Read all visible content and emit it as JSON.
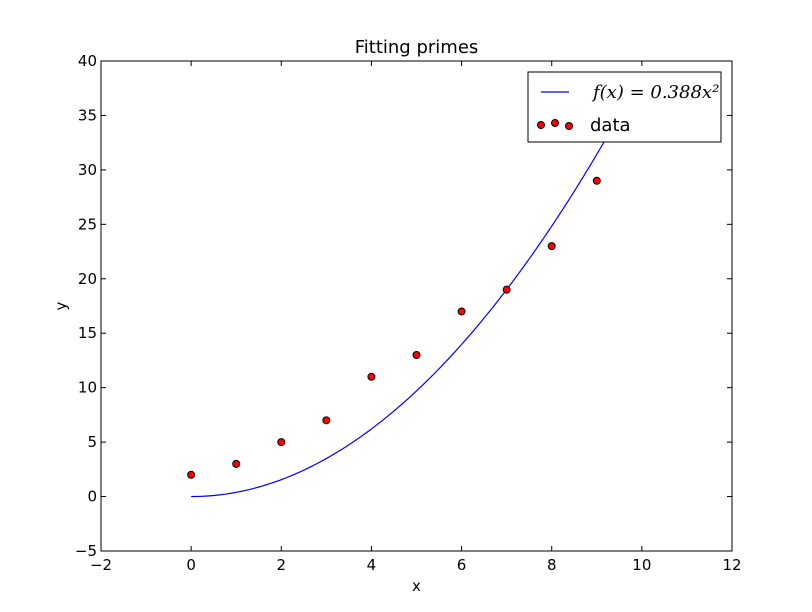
{
  "chart_data": {
    "type": "scatter",
    "title": "Fitting primes",
    "xlabel": "x",
    "ylabel": "y",
    "xlim": [
      -2,
      12
    ],
    "ylim": [
      -5,
      40
    ],
    "xticks": [
      -2,
      0,
      2,
      4,
      6,
      8,
      10,
      12
    ],
    "yticks": [
      -5,
      0,
      5,
      10,
      15,
      20,
      25,
      30,
      35,
      40
    ],
    "xtick_labels": [
      "−2",
      "0",
      "2",
      "4",
      "6",
      "8",
      "10",
      "12"
    ],
    "ytick_labels": [
      "−5",
      "0",
      "5",
      "10",
      "15",
      "20",
      "25",
      "30",
      "35",
      "40"
    ],
    "grid": false,
    "legend_position": "top-right",
    "series": [
      {
        "name": "f(x) = 0.388x²",
        "kind": "line",
        "color": "#0000ff",
        "function": {
          "form": "a*x^2",
          "a": 0.388
        },
        "x_range": [
          0,
          9.5
        ]
      },
      {
        "name": "data",
        "kind": "scatter",
        "color": "#ff0000",
        "edgecolor": "#000000",
        "x": [
          0,
          1,
          2,
          3,
          4,
          5,
          6,
          7,
          8,
          9
        ],
        "y": [
          2,
          3,
          5,
          7,
          11,
          13,
          17,
          19,
          23,
          29
        ]
      }
    ]
  }
}
